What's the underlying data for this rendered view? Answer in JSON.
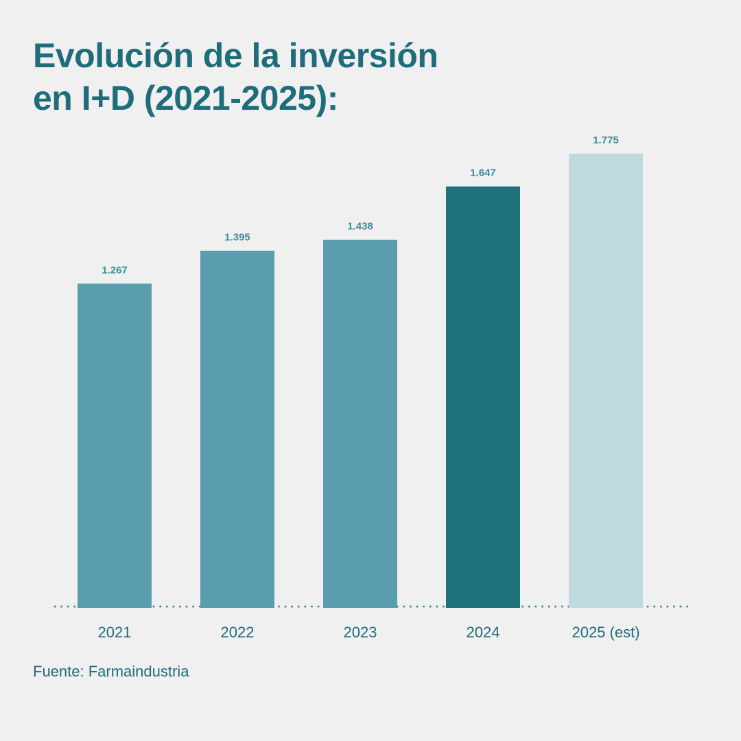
{
  "title_lines": [
    "Evolución de la inversión",
    "en I+D (2021-2025):"
  ],
  "source": "Fuente: Farmaindustria",
  "chart_data": {
    "type": "bar",
    "title": "Evolución de la inversión en I+D (2021-2025):",
    "xlabel": "",
    "ylabel": "",
    "categories": [
      "2021",
      "2022",
      "2023",
      "2024",
      "2025 (est)"
    ],
    "values": [
      1267,
      1395,
      1438,
      1647,
      1775
    ],
    "value_labels": [
      "1.267",
      "1.395",
      "1.438",
      "1.647",
      "1.775"
    ],
    "bar_colors": [
      "#599dae",
      "#599dae",
      "#599dae",
      "#1f717d",
      "#bed9e0"
    ],
    "label_color": "#3d8c9c",
    "axis_color": "#1f6c7a",
    "ylim": [
      0,
      1775
    ],
    "grid": false,
    "baseline": "dotted",
    "source": "Fuente: Farmaindustria"
  }
}
